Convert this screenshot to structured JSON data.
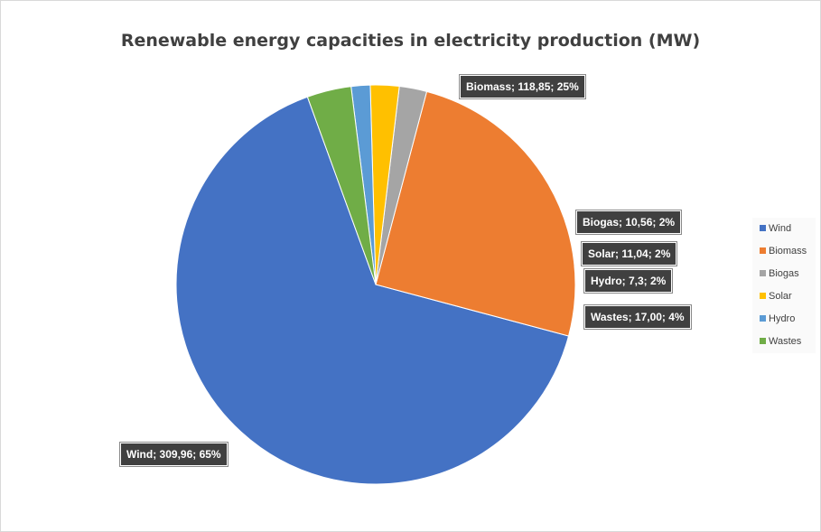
{
  "chart_data": {
    "type": "pie",
    "title": "Renewable energy capacities in electricity production (MW)",
    "slices": [
      {
        "name": "Wind",
        "value": 309.96,
        "label": "Wind;  309,96;  65%",
        "color": "#4472c4"
      },
      {
        "name": "Biomass",
        "value": 118.85,
        "label": "Biomass;  118,85;  25%",
        "color": "#ed7d31"
      },
      {
        "name": "Biogas",
        "value": 10.56,
        "label": "Biogas;  10,56;  2%",
        "color": "#a5a5a5"
      },
      {
        "name": "Solar",
        "value": 11.04,
        "label": "Solar; 11,04; 2%",
        "color": "#ffc000"
      },
      {
        "name": "Hydro",
        "value": 7.3,
        "label": "Hydro;  7,3;  2%",
        "color": "#5b9bd5"
      },
      {
        "name": "Wastes",
        "value": 17.0,
        "label": "Wastes;  17,00;  4%",
        "color": "#70ad47"
      }
    ],
    "legend": {
      "position": "right",
      "items": [
        "Wind",
        "Biomass",
        "Biogas",
        "Solar",
        "Hydro",
        "Wastes"
      ]
    }
  }
}
